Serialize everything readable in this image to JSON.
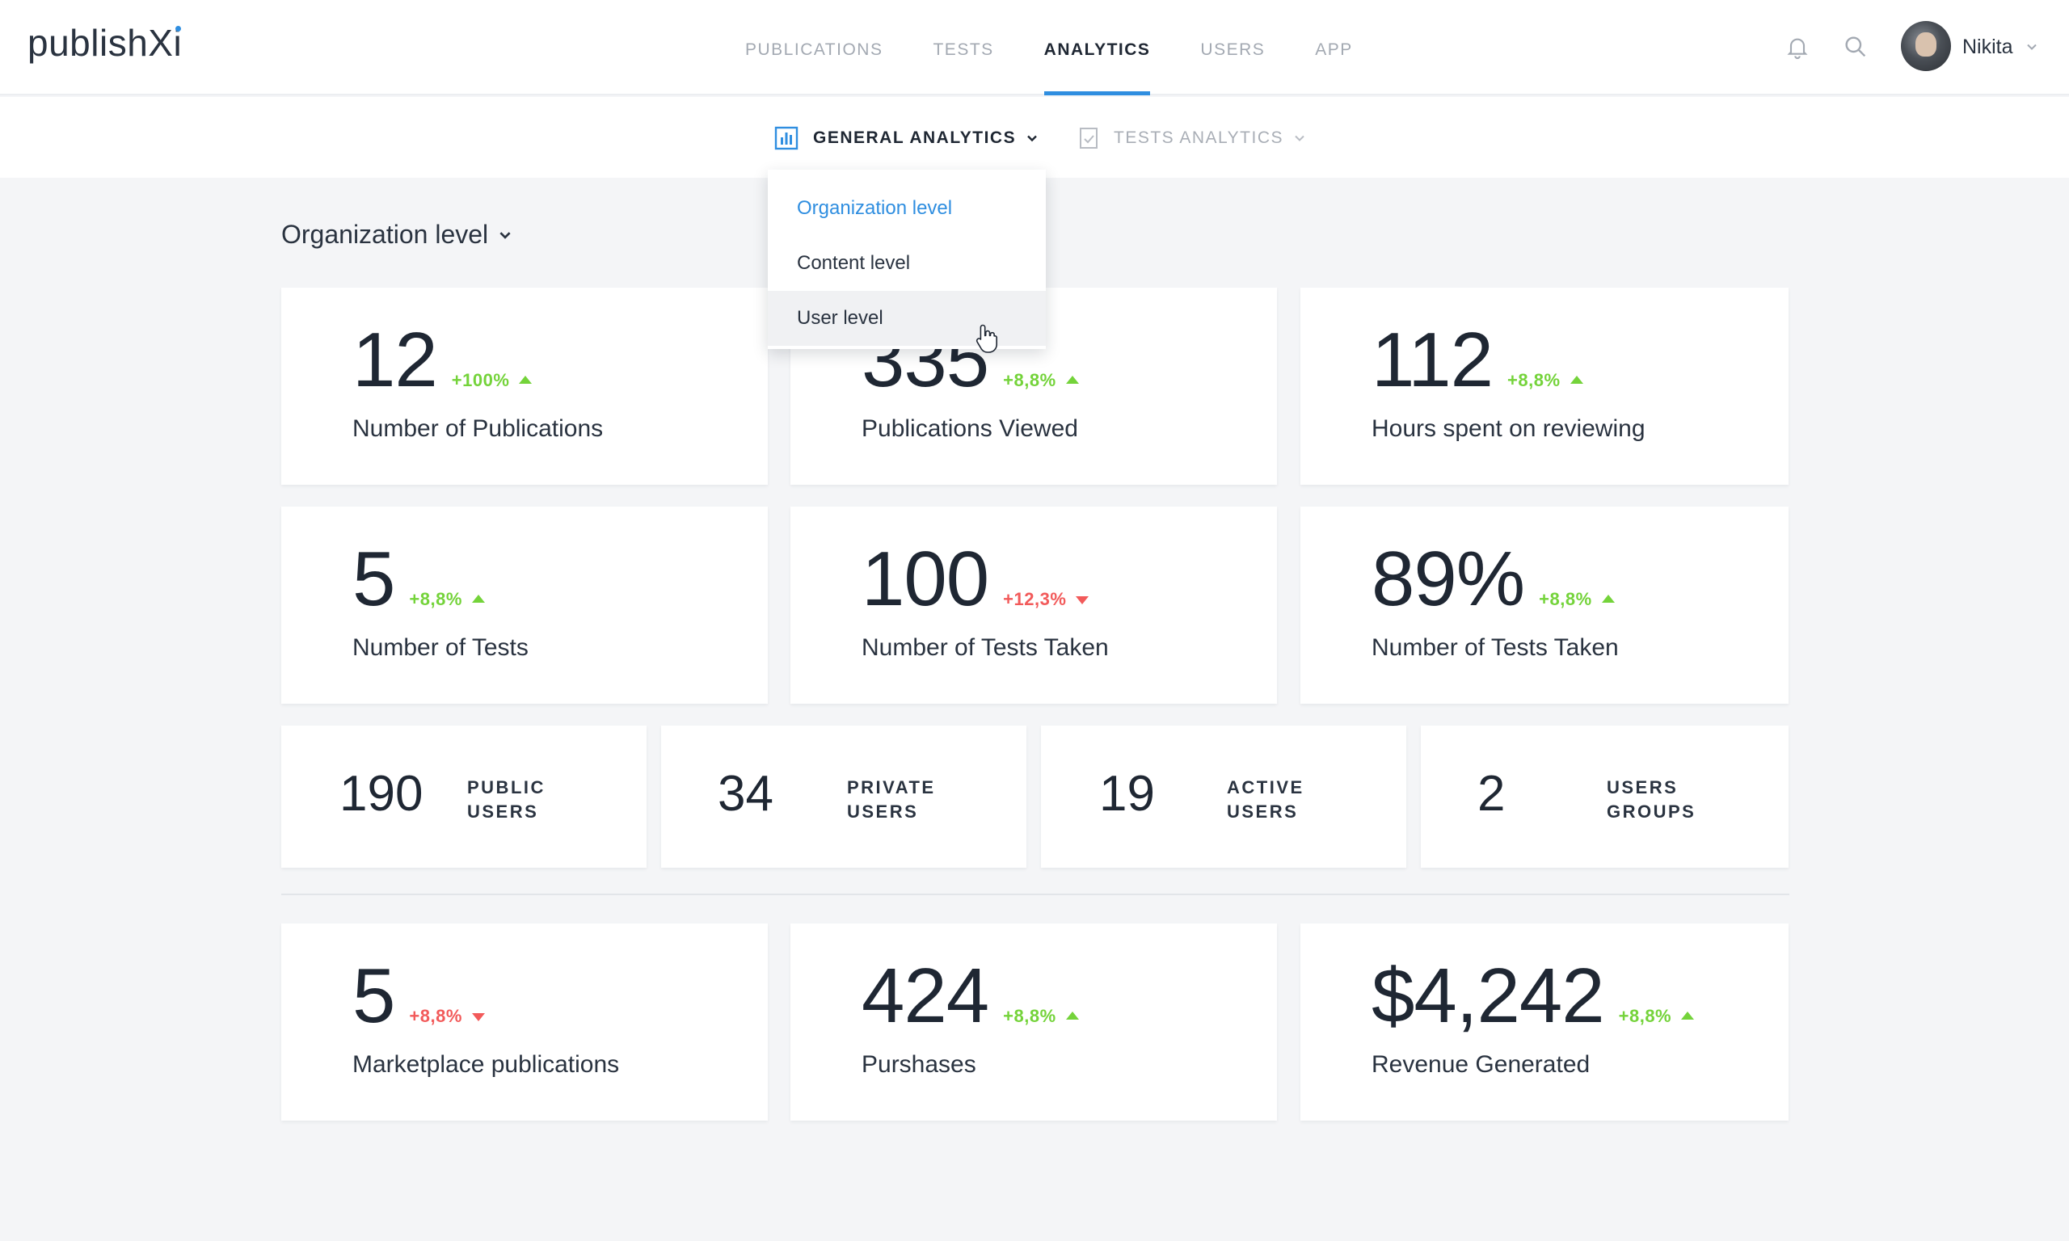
{
  "app": {
    "logo_text": "publishX",
    "logo_text_end": "i"
  },
  "nav": {
    "items": [
      {
        "label": "PUBLICATIONS"
      },
      {
        "label": "TESTS"
      },
      {
        "label": "ANALYTICS"
      },
      {
        "label": "USERS"
      },
      {
        "label": "APP"
      }
    ],
    "active": "ANALYTICS"
  },
  "user": {
    "name": "Nikita"
  },
  "subnav": {
    "general": {
      "label": "GENERAL ANALYTICS",
      "icon": "bar-chart-icon"
    },
    "tests": {
      "label": "TESTS ANALYTICS",
      "icon": "checklist-icon"
    }
  },
  "level_select": {
    "label": "Organization level"
  },
  "dropdown": {
    "items": [
      {
        "label": "Organization level",
        "state": "selected"
      },
      {
        "label": "Content level",
        "state": "normal"
      },
      {
        "label": "User level",
        "state": "hover"
      }
    ]
  },
  "metrics": [
    {
      "value": "12",
      "delta": "+100%",
      "trend": "up",
      "label": "Number of Publications"
    },
    {
      "value": "335",
      "delta": "+8,8%",
      "trend": "up",
      "label": "Publications Viewed"
    },
    {
      "value": "112",
      "delta": "+8,8%",
      "trend": "up",
      "label": "Hours spent on reviewing"
    },
    {
      "value": "5",
      "delta": "+8,8%",
      "trend": "up",
      "label": "Number of Tests"
    },
    {
      "value": "100",
      "delta": "+12,3%",
      "trend": "down",
      "label": "Number of Tests Taken"
    },
    {
      "value": "89%",
      "delta": "+8,8%",
      "trend": "up",
      "label": "Number of Tests Taken"
    }
  ],
  "user_stats": [
    {
      "value": "190",
      "label_line1": "PUBLIC",
      "label_line2": "USERS"
    },
    {
      "value": "34",
      "label_line1": "PRIVATE",
      "label_line2": "USERS"
    },
    {
      "value": "19",
      "label_line1": "ACTIVE",
      "label_line2": "USERS"
    },
    {
      "value": "2",
      "label_line1": "USERS",
      "label_line2": "GROUPS"
    }
  ],
  "market_metrics": [
    {
      "value": "5",
      "delta": "+8,8%",
      "trend": "down",
      "label": "Marketplace publications"
    },
    {
      "value": "424",
      "delta": "+8,8%",
      "trend": "up",
      "label": "Purshases"
    },
    {
      "value": "$4,242",
      "delta": "+8,8%",
      "trend": "up",
      "label": "Revenue Generated"
    }
  ],
  "colors": {
    "accent": "#2f8ee0",
    "positive": "#74d33a",
    "negative": "#f25a5a",
    "background": "#f4f5f7",
    "text": "#1f2733"
  }
}
